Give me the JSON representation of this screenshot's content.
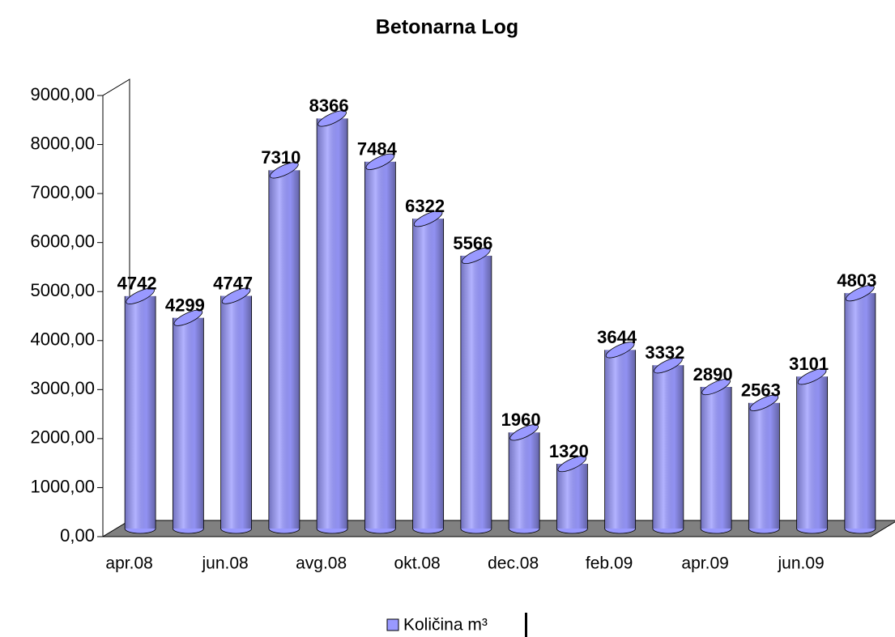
{
  "chart_data": {
    "type": "bar3d",
    "title": "Betonarna Log",
    "categories": [
      "apr.08",
      null,
      "jun.08",
      null,
      "avg.08",
      null,
      "okt.08",
      null,
      "dec.08",
      null,
      "feb.09",
      null,
      "apr.09",
      null,
      "jun.09",
      null
    ],
    "series": [
      {
        "name": "Količina m³",
        "color": "#9999ff",
        "values": [
          4742,
          4299,
          4747,
          7310,
          8366,
          7484,
          6322,
          5566,
          1960,
          1320,
          3644,
          3332,
          2890,
          2563,
          3101,
          4803
        ]
      }
    ],
    "ylim": [
      0,
      9000
    ],
    "yticks": [
      {
        "value": 0,
        "label": "0,00"
      },
      {
        "value": 1000,
        "label": "1000,00"
      },
      {
        "value": 2000,
        "label": "2000,00"
      },
      {
        "value": 3000,
        "label": "3000,00"
      },
      {
        "value": 4000,
        "label": "4000,00"
      },
      {
        "value": 5000,
        "label": "5000,00"
      },
      {
        "value": 6000,
        "label": "6000,00"
      },
      {
        "value": 7000,
        "label": "7000,00"
      },
      {
        "value": 8000,
        "label": "8000,00"
      },
      {
        "value": 9000,
        "label": "9000,00"
      }
    ],
    "grid": false,
    "legend": "bottom"
  }
}
